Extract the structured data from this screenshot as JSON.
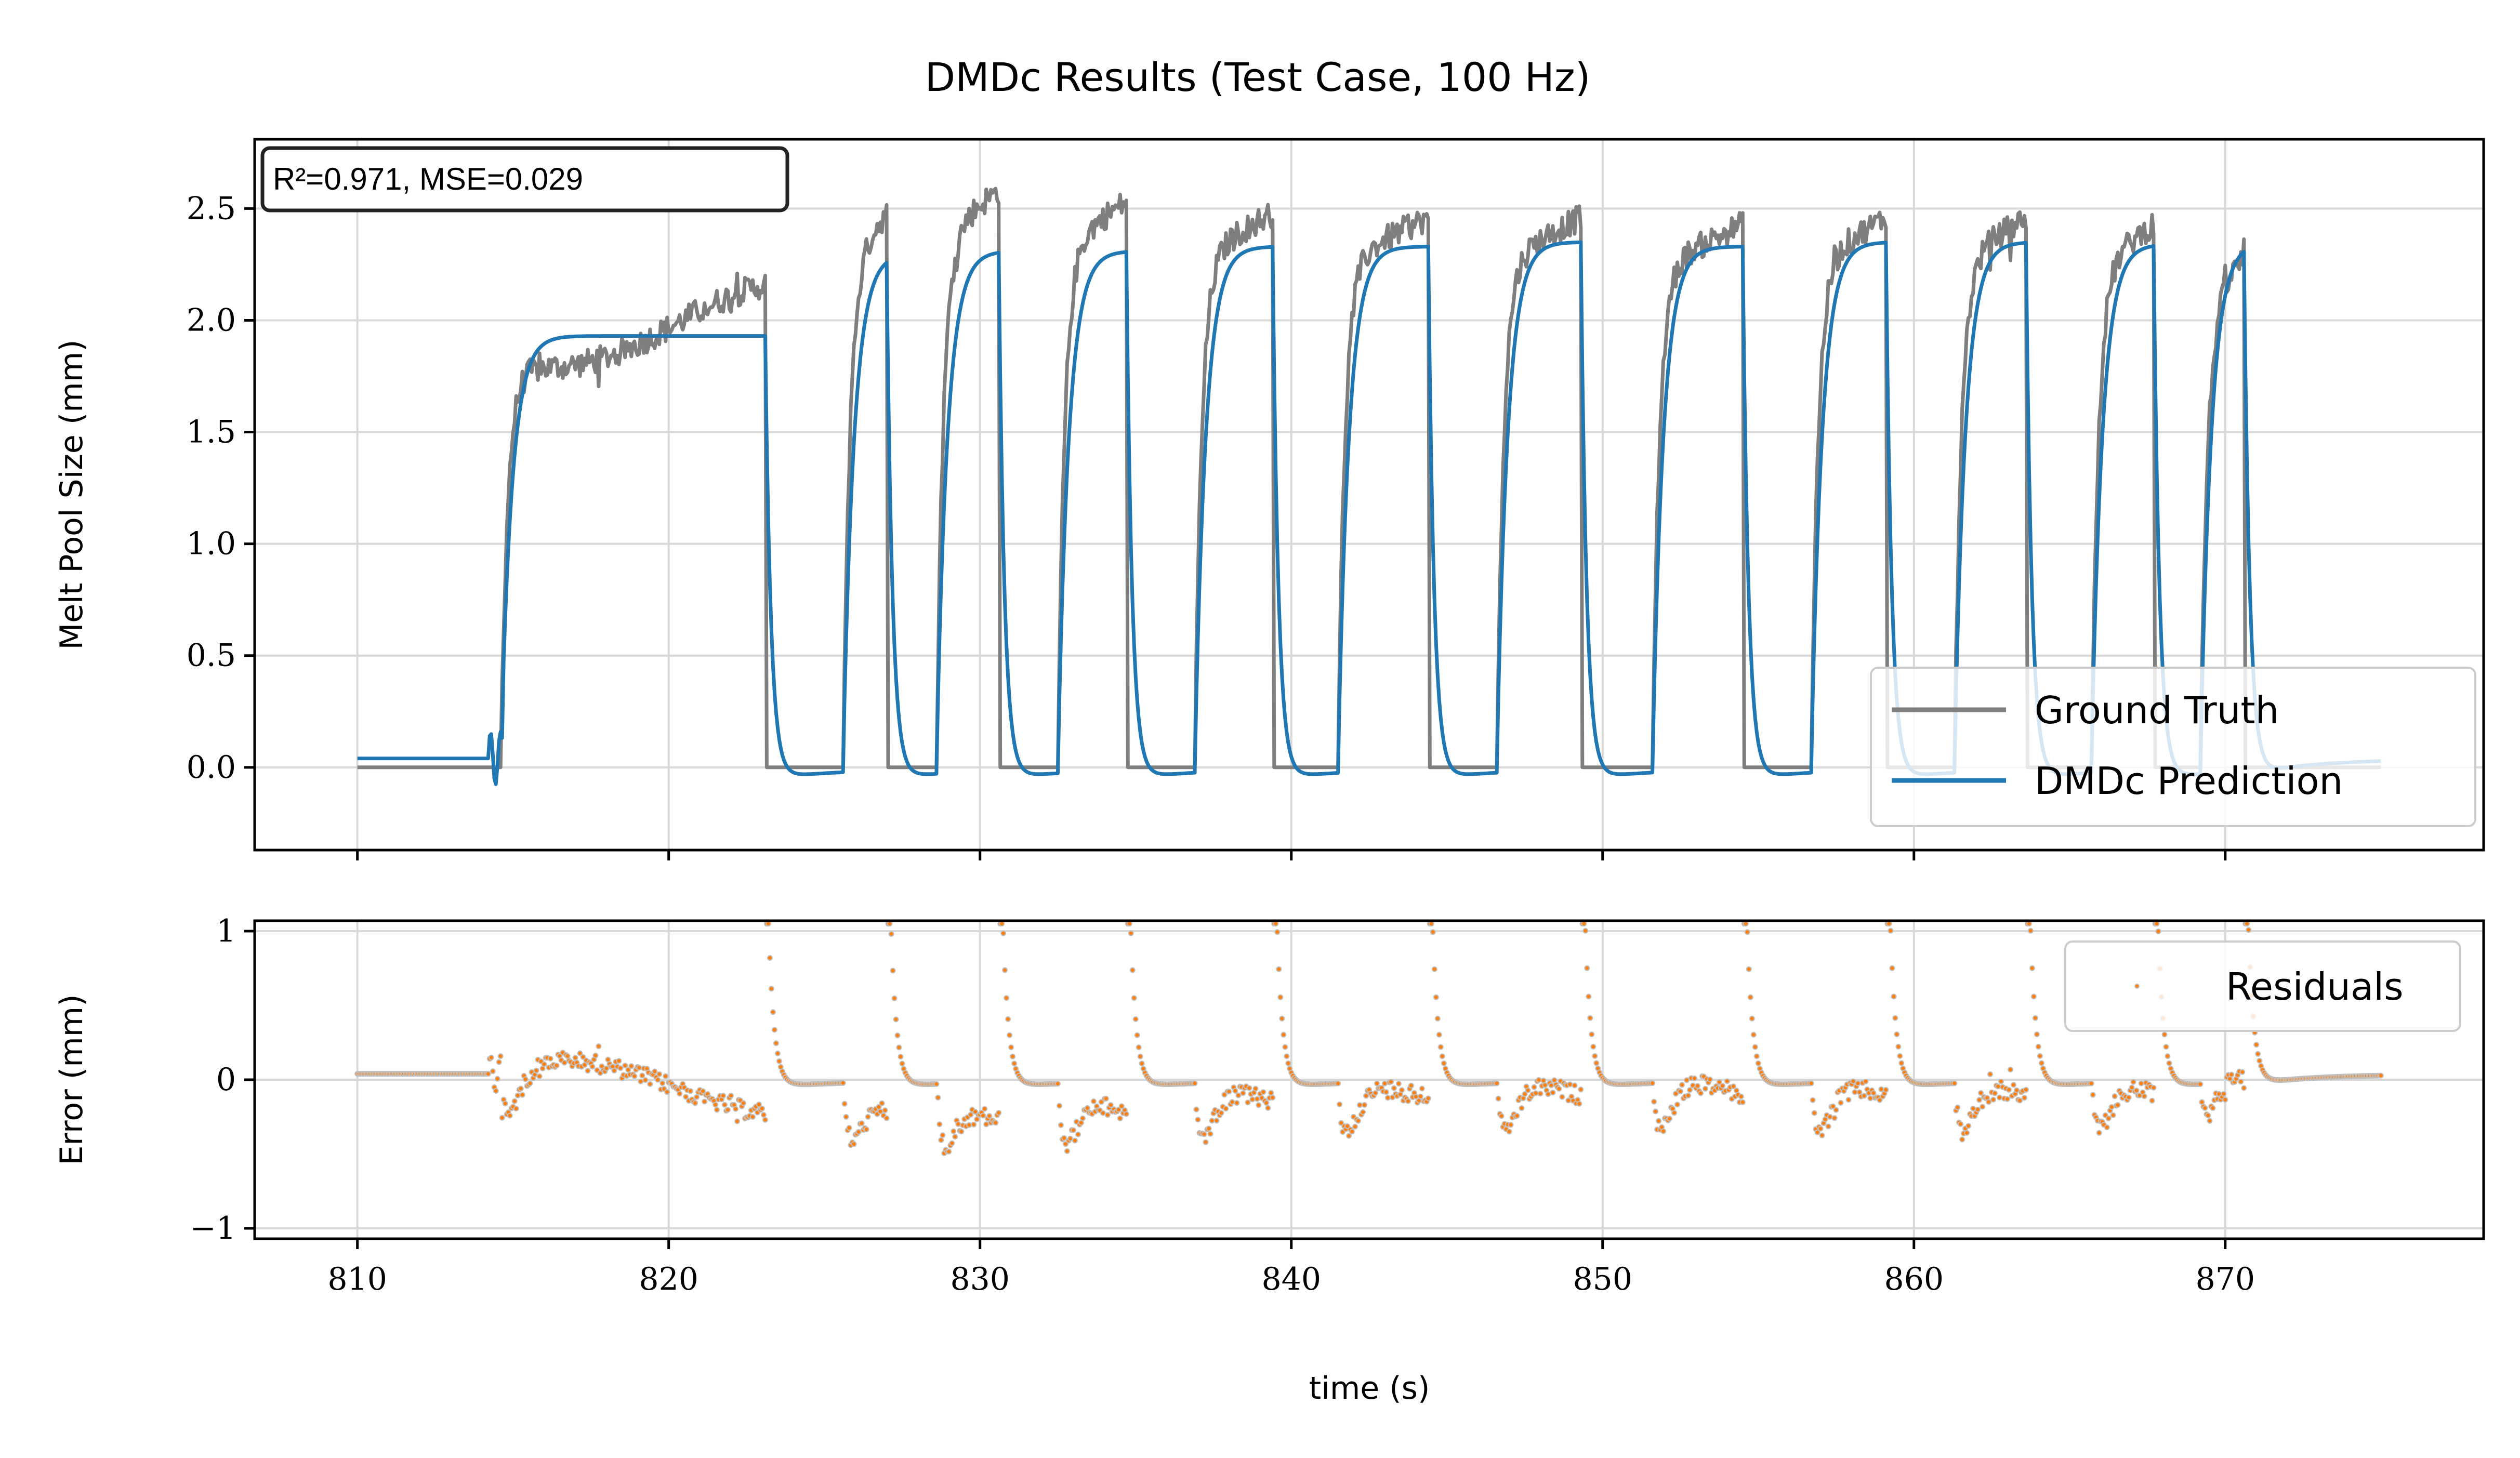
{
  "chart_data": [
    {
      "type": "line",
      "title": "DMDc Results (Test Case, 100 Hz)",
      "xlabel": "",
      "ylabel": "Melt Pool Size (mm)",
      "xlim": [
        806.7,
        878.3
      ],
      "ylim": [
        -0.37,
        2.81
      ],
      "xticks": [
        810,
        820,
        830,
        840,
        850,
        860,
        870
      ],
      "yticks": [
        0.0,
        0.5,
        1.0,
        1.5,
        2.0,
        2.5
      ],
      "ytick_labels": [
        "0.0",
        "0.5",
        "1.0",
        "1.5",
        "2.0",
        "2.5"
      ],
      "grid": true,
      "legend_position": "lower-right",
      "annotation": "R²=0.971, MSE=0.029",
      "pulses": [
        {
          "on": 814.6,
          "off": 823.1,
          "gt_level": 1.95,
          "pred_level": 1.93
        },
        {
          "on": 825.6,
          "off": 827.0,
          "gt_level": 2.4,
          "pred_level": 2.3
        },
        {
          "on": 828.6,
          "off": 830.6,
          "gt_level": 2.5,
          "pred_level": 2.31
        },
        {
          "on": 832.5,
          "off": 834.7,
          "gt_level": 2.45,
          "pred_level": 2.31
        },
        {
          "on": 836.9,
          "off": 839.4,
          "gt_level": 2.4,
          "pred_level": 2.33
        },
        {
          "on": 841.5,
          "off": 844.4,
          "gt_level": 2.38,
          "pred_level": 2.33
        },
        {
          "on": 846.6,
          "off": 849.3,
          "gt_level": 2.38,
          "pred_level": 2.35
        },
        {
          "on": 851.6,
          "off": 854.5,
          "gt_level": 2.35,
          "pred_level": 2.33
        },
        {
          "on": 856.7,
          "off": 859.1,
          "gt_level": 2.38,
          "pred_level": 2.35
        },
        {
          "on": 861.3,
          "off": 863.6,
          "gt_level": 2.38,
          "pred_level": 2.35
        },
        {
          "on": 865.7,
          "off": 867.7,
          "gt_level": 2.35,
          "pred_level": 2.34
        },
        {
          "on": 869.2,
          "off": 870.6,
          "gt_level": 2.2,
          "pred_level": 2.35
        }
      ],
      "baseline_start": 810.0,
      "baseline_end": 875.0,
      "pred_initial_level": 0.04,
      "series": [
        {
          "name": "Ground Truth",
          "color": "#7f7f7f"
        },
        {
          "name": "DMDc Prediction",
          "color": "#1f77b4"
        }
      ]
    },
    {
      "type": "scatter",
      "title": "",
      "xlabel": "time (s)",
      "ylabel": "Error (mm)",
      "xlim": [
        806.7,
        878.3
      ],
      "ylim": [
        -1.07,
        1.07
      ],
      "xticks": [
        810,
        820,
        830,
        840,
        850,
        860,
        870
      ],
      "xtick_labels": [
        "810",
        "820",
        "830",
        "840",
        "850",
        "860",
        "870"
      ],
      "yticks": [
        -1,
        0,
        1
      ],
      "ytick_labels": [
        "−1",
        "0",
        "1"
      ],
      "grid": true,
      "legend_position": "top-right",
      "series": [
        {
          "name": "Residuals",
          "color": "#ff7f0e",
          "edge_color": "#c0c0c0"
        }
      ]
    }
  ]
}
